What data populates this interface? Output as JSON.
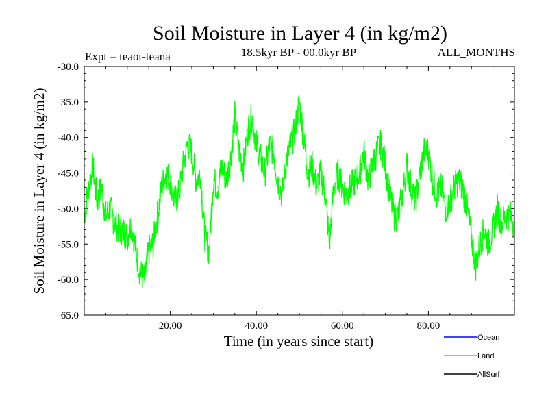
{
  "chart_data": {
    "type": "line",
    "title": "Soil Moisture in Layer 4 (in kg/m2)",
    "subtitle_left": "Expt = teaot-teana",
    "subtitle_center": "18.5kyr BP - 00.0kyr BP",
    "subtitle_right": "ALL_MONTHS",
    "xlabel": "Time (in years since start)",
    "ylabel": "Soil Moisture in Layer 4 (in kg/m2)",
    "xlim": [
      0,
      100
    ],
    "ylim": [
      -65,
      -30
    ],
    "x_ticks": [
      20,
      40,
      60,
      80
    ],
    "x_tick_labels": [
      "20.00",
      "40.00",
      "60.00",
      "80.00"
    ],
    "y_ticks": [
      -30,
      -35,
      -40,
      -45,
      -50,
      -55,
      -60,
      -65
    ],
    "y_tick_labels": [
      "-30.0",
      "-35.0",
      "-40.0",
      "-45.0",
      "-50.0",
      "-55.0",
      "-60.0",
      "-65.0"
    ],
    "legend": [
      {
        "name": "Ocean",
        "color": "#0000ff"
      },
      {
        "name": "Land",
        "color": "#00ff00"
      },
      {
        "name": "AllSurf",
        "color": "#000000"
      }
    ],
    "series": [
      {
        "name": "Land",
        "color": "#00ff00",
        "x": [
          0,
          1,
          2,
          3,
          4,
          5,
          6,
          7,
          8,
          9,
          10,
          11,
          12,
          13,
          14,
          15,
          16,
          17,
          18,
          19,
          20,
          21,
          22,
          23,
          24,
          25,
          26,
          27,
          28,
          29,
          30,
          31,
          32,
          33,
          34,
          35,
          36,
          37,
          38,
          39,
          40,
          41,
          42,
          43,
          44,
          45,
          46,
          47,
          48,
          49,
          50,
          51,
          52,
          53,
          54,
          55,
          56,
          57,
          58,
          59,
          60,
          61,
          62,
          63,
          64,
          65,
          66,
          67,
          68,
          69,
          70,
          71,
          72,
          73,
          74,
          75,
          76,
          77,
          78,
          79,
          80,
          81,
          82,
          83,
          84,
          85,
          86,
          87,
          88,
          89,
          90,
          91,
          92,
          93,
          94,
          95,
          96,
          97,
          98,
          99,
          100
        ],
        "values": [
          -51,
          -47,
          -44,
          -49,
          -47,
          -51,
          -50,
          -52,
          -53,
          -53,
          -54,
          -52,
          -56,
          -59,
          -60,
          -56,
          -55,
          -51,
          -47,
          -45,
          -46,
          -49,
          -48,
          -44,
          -41,
          -42,
          -46,
          -45,
          -54,
          -56,
          -46,
          -47,
          -44,
          -46,
          -43,
          -37,
          -42,
          -44,
          -39,
          -37,
          -41,
          -43,
          -45,
          -41,
          -42,
          -46,
          -48,
          -43,
          -41,
          -39,
          -35,
          -40,
          -45,
          -44,
          -47,
          -45,
          -48,
          -55,
          -47,
          -45,
          -47,
          -48,
          -47,
          -46,
          -45,
          -42,
          -46,
          -44,
          -42,
          -41,
          -44,
          -48,
          -51,
          -51,
          -48,
          -44,
          -47,
          -49,
          -45,
          -42,
          -42,
          -46,
          -48,
          -47,
          -50,
          -49,
          -47,
          -46,
          -47,
          -50,
          -54,
          -58,
          -55,
          -53,
          -55,
          -53,
          -50,
          -52,
          -51,
          -51,
          -52
        ]
      }
    ]
  }
}
